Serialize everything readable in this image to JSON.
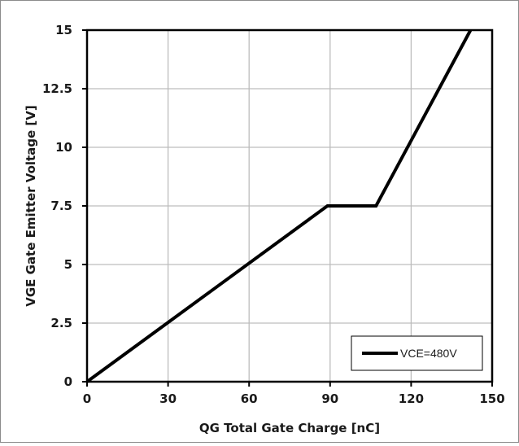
{
  "chart_data": {
    "type": "line",
    "xlabel": "QG Total Gate Charge [nC]",
    "ylabel": "VGE Gate Emitter Voltage [V]",
    "xlim": [
      0,
      150
    ],
    "ylim": [
      0,
      15
    ],
    "xticks": [
      "0",
      "30",
      "60",
      "90",
      "120",
      "150"
    ],
    "yticks": [
      "0",
      "2.5",
      "5",
      "7.5",
      "10",
      "12.5",
      "15"
    ],
    "xtick_values": [
      0,
      30,
      60,
      90,
      120,
      150
    ],
    "ytick_values": [
      0,
      2.5,
      5,
      7.5,
      10,
      12.5,
      15
    ],
    "grid": true,
    "legend_position": "bottom-right",
    "series": [
      {
        "name": "VCE=480V",
        "color": "#000000",
        "x": [
          0,
          89,
          107,
          142
        ],
        "y": [
          0,
          7.5,
          7.5,
          15
        ]
      }
    ]
  }
}
